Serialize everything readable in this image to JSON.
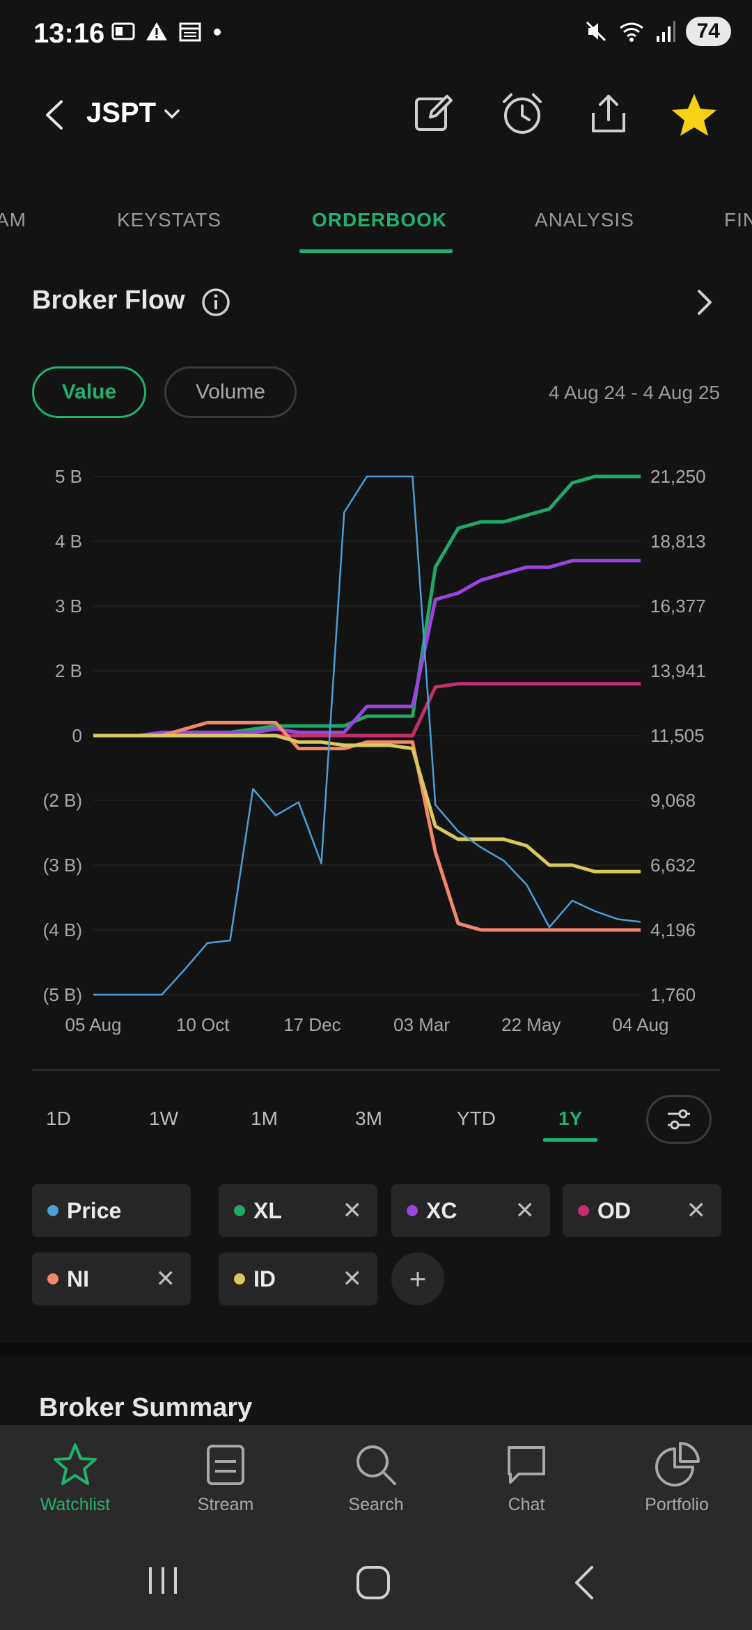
{
  "status_bar": {
    "time": "13:16",
    "battery": "74"
  },
  "header": {
    "ticker": "JSPT"
  },
  "tabs": [
    {
      "label": "AM",
      "active": false
    },
    {
      "label": "KEYSTATS",
      "active": false
    },
    {
      "label": "ORDERBOOK",
      "active": true
    },
    {
      "label": "ANALYSIS",
      "active": false
    },
    {
      "label": "FIN",
      "active": false
    }
  ],
  "section": {
    "title": "Broker Flow",
    "value_label": "Value",
    "volume_label": "Volume",
    "date_range": "4 Aug 24 - 4 Aug 25"
  },
  "chart_data": {
    "type": "line",
    "x_ticks": [
      "05 Aug",
      "10 Oct",
      "17 Dec",
      "03 Mar",
      "22 May",
      "04 Aug"
    ],
    "y_left_ticks": [
      "5 B",
      "4 B",
      "3 B",
      "2 B",
      "0",
      "(2 B)",
      "(3 B)",
      "(4 B)",
      "(5 B)"
    ],
    "y_right_ticks": [
      "21,250",
      "18,813",
      "16,377",
      "13,941",
      "11,505",
      "9,068",
      "6,632",
      "4,196",
      "1,760"
    ],
    "grid": true,
    "colors": {
      "Price": "#4a9fd8",
      "XL": "#21a865",
      "XC": "#9b45e0",
      "OD": "#c2306b",
      "NI": "#f2876b",
      "ID": "#d9c85c"
    },
    "x_dates": [
      "05 Aug",
      "20 Aug",
      "05 Sep",
      "20 Sep",
      "05 Oct",
      "20 Oct",
      "05 Nov",
      "20 Nov",
      "05 Dec",
      "20 Dec",
      "05 Jan",
      "20 Jan",
      "05 Feb",
      "20 Feb",
      "05 Mar",
      "20 Mar",
      "05 Apr",
      "20 Apr",
      "05 May",
      "20 May",
      "05 Jun",
      "20 Jun",
      "05 Jul",
      "20 Jul",
      "04 Aug"
    ],
    "series": [
      {
        "name": "XL",
        "values": [
          0,
          0,
          0,
          0,
          0.1,
          0.1,
          0.1,
          0.2,
          0.3,
          0.3,
          0.3,
          0.3,
          0.6,
          0.6,
          0.6,
          3.6,
          4.2,
          4.3,
          4.3,
          4.4,
          4.5,
          4.9,
          5.0,
          5.0,
          5.0
        ]
      },
      {
        "name": "XC",
        "values": [
          0,
          0,
          0,
          0.1,
          0.1,
          0.1,
          0.1,
          0.1,
          0.2,
          0.1,
          0.1,
          0.1,
          0.9,
          0.9,
          0.9,
          3.1,
          3.2,
          3.4,
          3.5,
          3.6,
          3.6,
          3.7,
          3.7,
          3.7,
          3.7
        ]
      },
      {
        "name": "OD",
        "values": [
          0,
          0,
          0,
          0,
          0,
          0,
          0,
          0,
          0,
          0,
          0,
          0,
          0,
          0,
          0,
          1.5,
          1.6,
          1.6,
          1.6,
          1.6,
          1.6,
          1.6,
          1.6,
          1.6,
          1.6
        ]
      },
      {
        "name": "NI",
        "values": [
          0,
          0,
          0,
          0,
          0.2,
          0.4,
          0.4,
          0.4,
          0.4,
          -0.4,
          -0.4,
          -0.4,
          -0.2,
          -0.2,
          -0.2,
          -2.8,
          -3.9,
          -4.0,
          -4.0,
          -4.0,
          -4.0,
          -4.0,
          -4.0,
          -4.0,
          -4.0
        ]
      },
      {
        "name": "ID",
        "values": [
          0,
          0,
          0,
          0,
          0,
          0,
          0,
          0,
          0,
          -0.2,
          -0.2,
          -0.3,
          -0.3,
          -0.3,
          -0.4,
          -2.4,
          -2.6,
          -2.6,
          -2.6,
          -2.7,
          -3.0,
          -3.0,
          -3.1,
          -3.1,
          -3.1
        ]
      },
      {
        "name": "Price",
        "values": [
          1760,
          1760,
          1760,
          1760,
          2700,
          3700,
          3800,
          9500,
          8500,
          9000,
          6700,
          19900,
          21250,
          21250,
          21250,
          8900,
          7900,
          7300,
          6800,
          5900,
          4300,
          5300,
          4900,
          4600,
          4500
        ]
      }
    ]
  },
  "ranges": [
    {
      "label": "1D",
      "active": false
    },
    {
      "label": "1W",
      "active": false
    },
    {
      "label": "1M",
      "active": false
    },
    {
      "label": "3M",
      "active": false
    },
    {
      "label": "YTD",
      "active": false
    },
    {
      "label": "1Y",
      "active": true
    }
  ],
  "chips": [
    {
      "label": "Price",
      "color": "#4a9fd8",
      "removable": false
    },
    {
      "label": "XL",
      "color": "#21a865",
      "removable": true
    },
    {
      "label": "XC",
      "color": "#9b45e0",
      "removable": true
    },
    {
      "label": "OD",
      "color": "#c2306b",
      "removable": true
    },
    {
      "label": "NI",
      "color": "#f2876b",
      "removable": true
    },
    {
      "label": "ID",
      "color": "#d9c85c",
      "removable": true
    }
  ],
  "chip_close_glyph": "✕",
  "add_glyph": "+",
  "broker_summary_title": "Broker Summary",
  "bottom_nav": [
    {
      "label": "Watchlist",
      "icon": "star-icon",
      "active": true
    },
    {
      "label": "Stream",
      "icon": "stream-icon",
      "active": false
    },
    {
      "label": "Search",
      "icon": "search-icon",
      "active": false
    },
    {
      "label": "Chat",
      "icon": "chat-icon",
      "active": false
    },
    {
      "label": "Portfolio",
      "icon": "pie-chart-icon",
      "active": false
    }
  ]
}
